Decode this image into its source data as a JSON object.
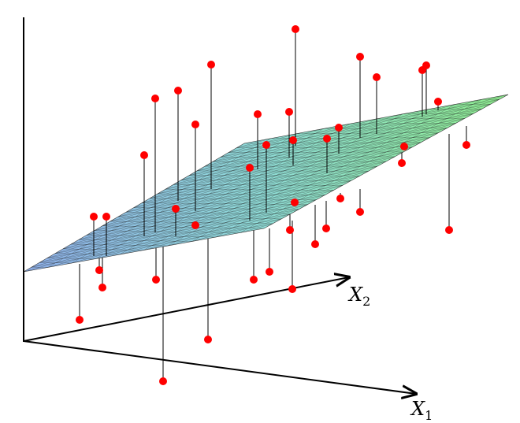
{
  "axes": {
    "x1": {
      "label": "X",
      "subscript": "1"
    },
    "x2": {
      "label": "X",
      "subscript": "2"
    }
  }
}
